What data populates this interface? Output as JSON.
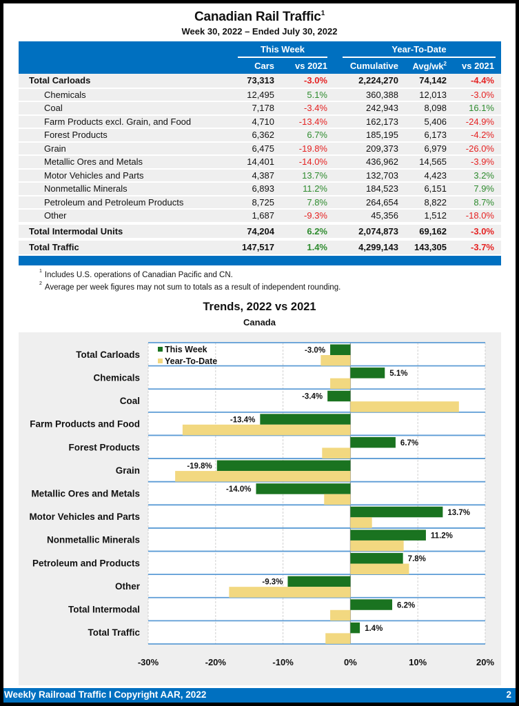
{
  "header": {
    "title": "Canadian Rail Traffic",
    "title_footnote": "1",
    "subtitle": "Week 30, 2022 – Ended July 30, 2022"
  },
  "table": {
    "groups": [
      "This Week",
      "Year-To-Date"
    ],
    "columns": [
      "Cars",
      "vs 2021",
      "Cumulative",
      "Avg/wk",
      "vs 2021"
    ],
    "avg_footnote": "2",
    "rows": [
      {
        "label": "Total Carloads",
        "type": "total",
        "cars": "73,313",
        "vs_week": "-3.0%",
        "cumulative": "2,224,270",
        "avg": "74,142",
        "vs_ytd": "-4.4%"
      },
      {
        "label": "Chemicals",
        "type": "sub",
        "cars": "12,495",
        "vs_week": "5.1%",
        "cumulative": "360,388",
        "avg": "12,013",
        "vs_ytd": "-3.0%"
      },
      {
        "label": "Coal",
        "type": "sub",
        "cars": "7,178",
        "vs_week": "-3.4%",
        "cumulative": "242,943",
        "avg": "8,098",
        "vs_ytd": "16.1%"
      },
      {
        "label": "Farm Products excl. Grain, and Food",
        "type": "sub",
        "cars": "4,710",
        "vs_week": "-13.4%",
        "cumulative": "162,173",
        "avg": "5,406",
        "vs_ytd": "-24.9%"
      },
      {
        "label": "Forest Products",
        "type": "sub",
        "cars": "6,362",
        "vs_week": "6.7%",
        "cumulative": "185,195",
        "avg": "6,173",
        "vs_ytd": "-4.2%"
      },
      {
        "label": "Grain",
        "type": "sub",
        "cars": "6,475",
        "vs_week": "-19.8%",
        "cumulative": "209,373",
        "avg": "6,979",
        "vs_ytd": "-26.0%"
      },
      {
        "label": "Metallic Ores and Metals",
        "type": "sub",
        "cars": "14,401",
        "vs_week": "-14.0%",
        "cumulative": "436,962",
        "avg": "14,565",
        "vs_ytd": "-3.9%"
      },
      {
        "label": "Motor Vehicles and Parts",
        "type": "sub",
        "cars": "4,387",
        "vs_week": "13.7%",
        "cumulative": "132,703",
        "avg": "4,423",
        "vs_ytd": "3.2%"
      },
      {
        "label": "Nonmetallic Minerals",
        "type": "sub",
        "cars": "6,893",
        "vs_week": "11.2%",
        "cumulative": "184,523",
        "avg": "6,151",
        "vs_ytd": "7.9%"
      },
      {
        "label": "Petroleum and Petroleum Products",
        "type": "sub",
        "cars": "8,725",
        "vs_week": "7.8%",
        "cumulative": "264,654",
        "avg": "8,822",
        "vs_ytd": "8.7%"
      },
      {
        "label": "Other",
        "type": "sub",
        "cars": "1,687",
        "vs_week": "-9.3%",
        "cumulative": "45,356",
        "avg": "1,512",
        "vs_ytd": "-18.0%"
      },
      {
        "label": "Total Intermodal Units",
        "type": "total",
        "cars": "74,204",
        "vs_week": "6.2%",
        "cumulative": "2,074,873",
        "avg": "69,162",
        "vs_ytd": "-3.0%"
      },
      {
        "label": "Total Traffic",
        "type": "total",
        "cars": "147,517",
        "vs_week": "1.4%",
        "cumulative": "4,299,143",
        "avg": "143,305",
        "vs_ytd": "-3.7%"
      }
    ]
  },
  "notes": [
    {
      "mark": "1",
      "text": "Includes U.S. operations of Canadian Pacific and CN."
    },
    {
      "mark": "2",
      "text": "Average per week figures may not sum to totals as a result of independent rounding."
    }
  ],
  "colors": {
    "brand_blue": "#0070c0",
    "this_week": "#1a7320",
    "year_to_date": "#f2d880",
    "negative": "#e52222",
    "positive": "#2e8b2e"
  },
  "chart_data": {
    "type": "bar",
    "orientation": "horizontal",
    "title": "Trends, 2022 vs 2021",
    "subtitle": "Canada",
    "categories": [
      "Total Carloads",
      "Chemicals",
      "Coal",
      "Farm Products and Food",
      "Forest Products",
      "Grain",
      "Metallic Ores and Metals",
      "Motor Vehicles and Parts",
      "Nonmetallic Minerals",
      "Petroleum and Products",
      "Other",
      "Total Intermodal",
      "Total Traffic"
    ],
    "series": [
      {
        "name": "This Week",
        "values": [
          -3.0,
          5.1,
          -3.4,
          -13.4,
          6.7,
          -19.8,
          -14.0,
          13.7,
          11.2,
          7.8,
          -9.3,
          6.2,
          1.4
        ],
        "labeled": true
      },
      {
        "name": "Year-To-Date",
        "values": [
          -4.4,
          -3.0,
          16.1,
          -24.9,
          -4.2,
          -26.0,
          -3.9,
          3.2,
          7.9,
          8.7,
          -18.0,
          -3.0,
          -3.7
        ],
        "labeled": false
      }
    ],
    "xlim": [
      -30,
      20
    ],
    "xticks": [
      -30,
      -20,
      -10,
      0,
      10,
      20
    ],
    "tick_format": "{v}%",
    "xlabel": "",
    "ylabel": "",
    "grid": true,
    "legend": "top-left"
  },
  "footer": {
    "left": "Weekly Railroad Traffic I Copyright AAR, 2022",
    "page": "2"
  }
}
